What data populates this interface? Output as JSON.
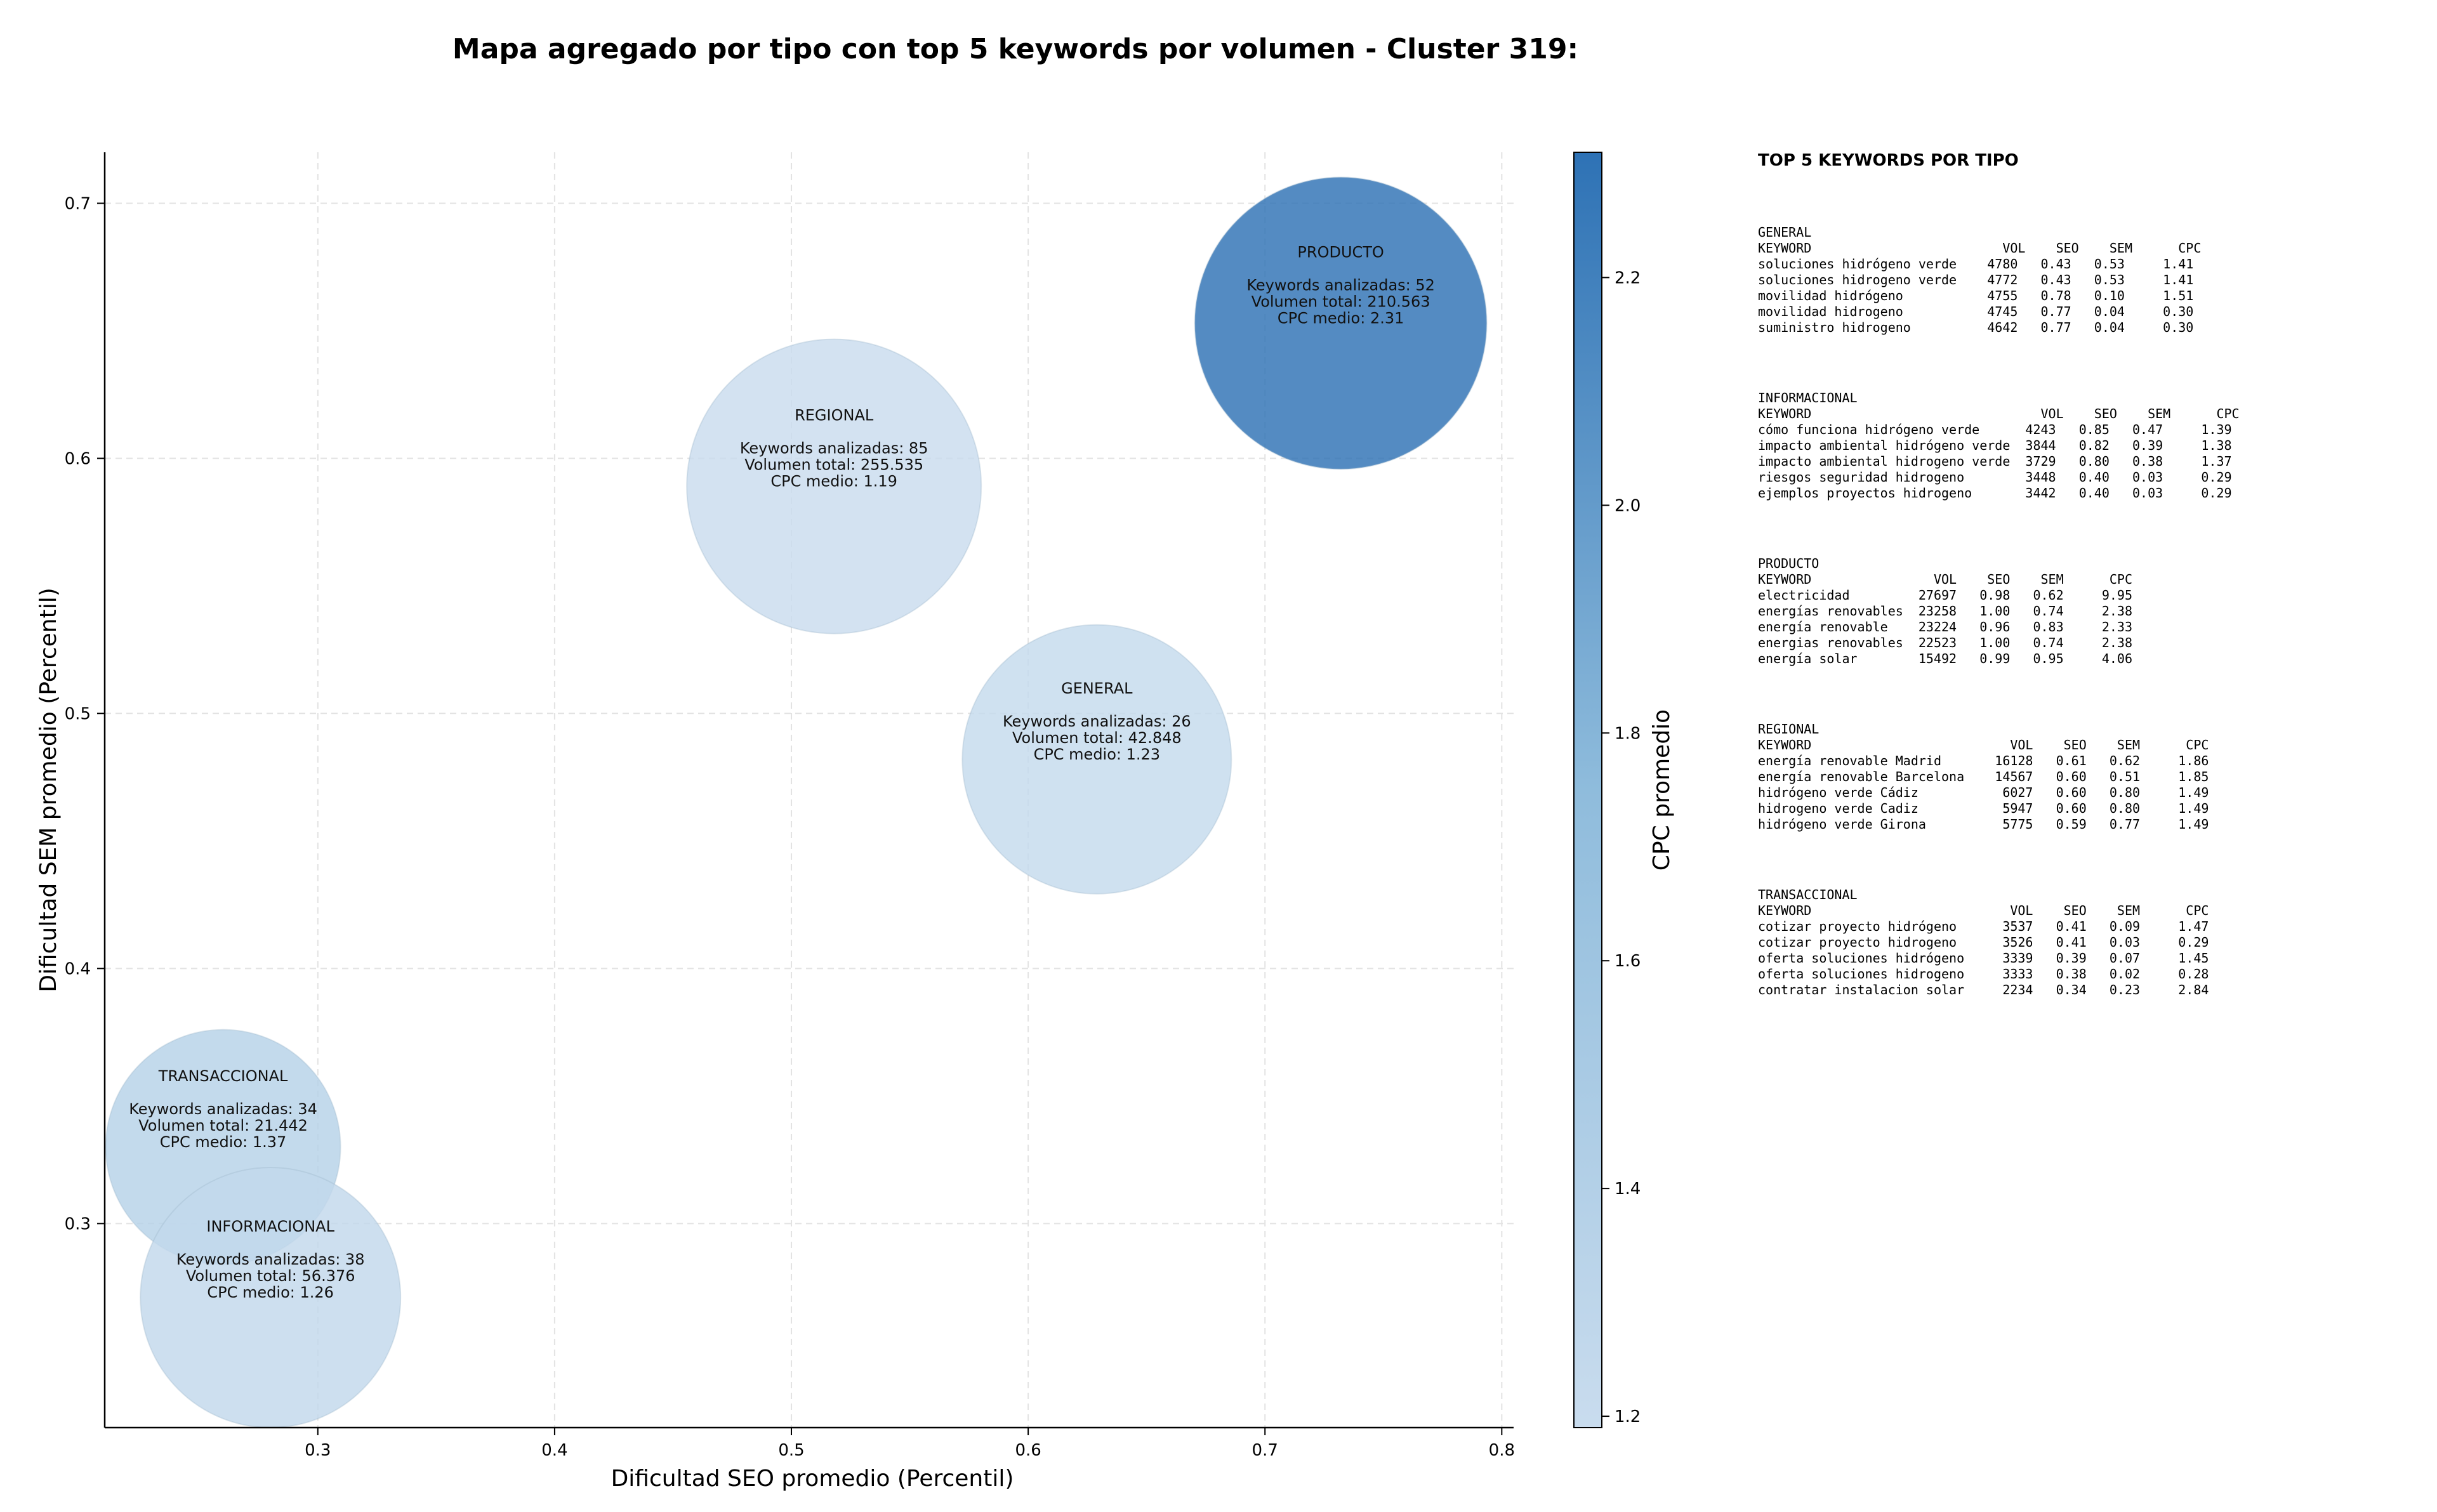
{
  "chart_data": {
    "type": "scatter",
    "title": "Mapa agregado por tipo con top 5 keywords por volumen - Cluster 319:",
    "xlabel": "Dificultad SEO promedio (Percentil)",
    "ylabel": "Dificultad SEM promedio (Percentil)",
    "xlim": [
      0.21,
      0.805
    ],
    "ylim": [
      0.22,
      0.72
    ],
    "x_ticks": [
      0.3,
      0.4,
      0.5,
      0.6,
      0.7,
      0.8
    ],
    "y_ticks": [
      0.3,
      0.4,
      0.5,
      0.6,
      0.7
    ],
    "grid": true,
    "colorbar": {
      "label": "CPC promedio",
      "range": [
        1.19,
        2.31
      ],
      "ticks": [
        1.2,
        1.4,
        1.6,
        1.8,
        2.0,
        2.2
      ],
      "color_low": "#c9dcee",
      "color_high": "#2e72b5"
    },
    "points": [
      {
        "name": "PRODUCTO",
        "x": 0.732,
        "y": 0.653,
        "cpc": 2.31,
        "keywords_label": "Keywords analizadas: 52",
        "volume_label": "Volumen total: 210.563",
        "cpc_label": "CPC medio: 2.31"
      },
      {
        "name": "REGIONAL",
        "x": 0.518,
        "y": 0.589,
        "cpc": 1.19,
        "keywords_label": "Keywords analizadas: 85",
        "volume_label": "Volumen total: 255.535",
        "cpc_label": "CPC medio: 1.19"
      },
      {
        "name": "GENERAL",
        "x": 0.629,
        "y": 0.482,
        "cpc": 1.23,
        "keywords_label": "Keywords analizadas: 26",
        "volume_label": "Volumen total: 42.848",
        "cpc_label": "CPC medio: 1.23"
      },
      {
        "name": "TRANSACCIONAL",
        "x": 0.26,
        "y": 0.33,
        "cpc": 1.37,
        "keywords_label": "Keywords analizadas: 34",
        "volume_label": "Volumen total: 21.442",
        "cpc_label": "CPC medio: 1.37"
      },
      {
        "name": "INFORMACIONAL",
        "x": 0.28,
        "y": 0.271,
        "cpc": 1.26,
        "keywords_label": "Keywords analizadas: 38",
        "volume_label": "Volumen total: 56.376",
        "cpc_label": "CPC medio: 1.26"
      }
    ]
  },
  "panel": {
    "title": "TOP 5 KEYWORDS POR TIPO",
    "sections": [
      {
        "name": "GENERAL",
        "table": "GENERAL\nKEYWORD                         VOL    SEO    SEM      CPC\nsoluciones hidrógeno verde    4780   0.43   0.53     1.41\nsoluciones hidrogeno verde    4772   0.43   0.53     1.41\nmovilidad hidrógeno           4755   0.78   0.10     1.51\nmovilidad hidrogeno           4745   0.77   0.04     0.30\nsuministro hidrogeno          4642   0.77   0.04     0.30"
      },
      {
        "name": "INFORMACIONAL",
        "table": "INFORMACIONAL\nKEYWORD                              VOL    SEO    SEM      CPC\ncómo funciona hidrógeno verde      4243   0.85   0.47     1.39\nimpacto ambiental hidrógeno verde  3844   0.82   0.39     1.38\nimpacto ambiental hidrogeno verde  3729   0.80   0.38     1.37\nriesgos seguridad hidrogeno        3448   0.40   0.03     0.29\nejemplos proyectos hidrogeno       3442   0.40   0.03     0.29"
      },
      {
        "name": "PRODUCTO",
        "table": "PRODUCTO\nKEYWORD                VOL    SEO    SEM      CPC\nelectricidad         27697   0.98   0.62     9.95\nenergías renovables  23258   1.00   0.74     2.38\nenergía renovable    23224   0.96   0.83     2.33\nenergias renovables  22523   1.00   0.74     2.38\nenergía solar        15492   0.99   0.95     4.06"
      },
      {
        "name": "REGIONAL",
        "table": "REGIONAL\nKEYWORD                          VOL    SEO    SEM      CPC\nenergía renovable Madrid       16128   0.61   0.62     1.86\nenergía renovable Barcelona    14567   0.60   0.51     1.85\nhidrógeno verde Cádiz           6027   0.60   0.80     1.49\nhidrogeno verde Cadiz           5947   0.60   0.80     1.49\nhidrógeno verde Girona          5775   0.59   0.77     1.49"
      },
      {
        "name": "TRANSACCIONAL",
        "table": "TRANSACCIONAL\nKEYWORD                          VOL    SEO    SEM      CPC\ncotizar proyecto hidrógeno      3537   0.41   0.09     1.47\ncotizar proyecto hidrogeno      3526   0.41   0.03     0.29\noferta soluciones hidrógeno     3339   0.39   0.07     1.45\noferta soluciones hidrogeno     3333   0.38   0.02     0.28\ncontratar instalacion solar     2234   0.34   0.23     2.84"
      }
    ]
  }
}
